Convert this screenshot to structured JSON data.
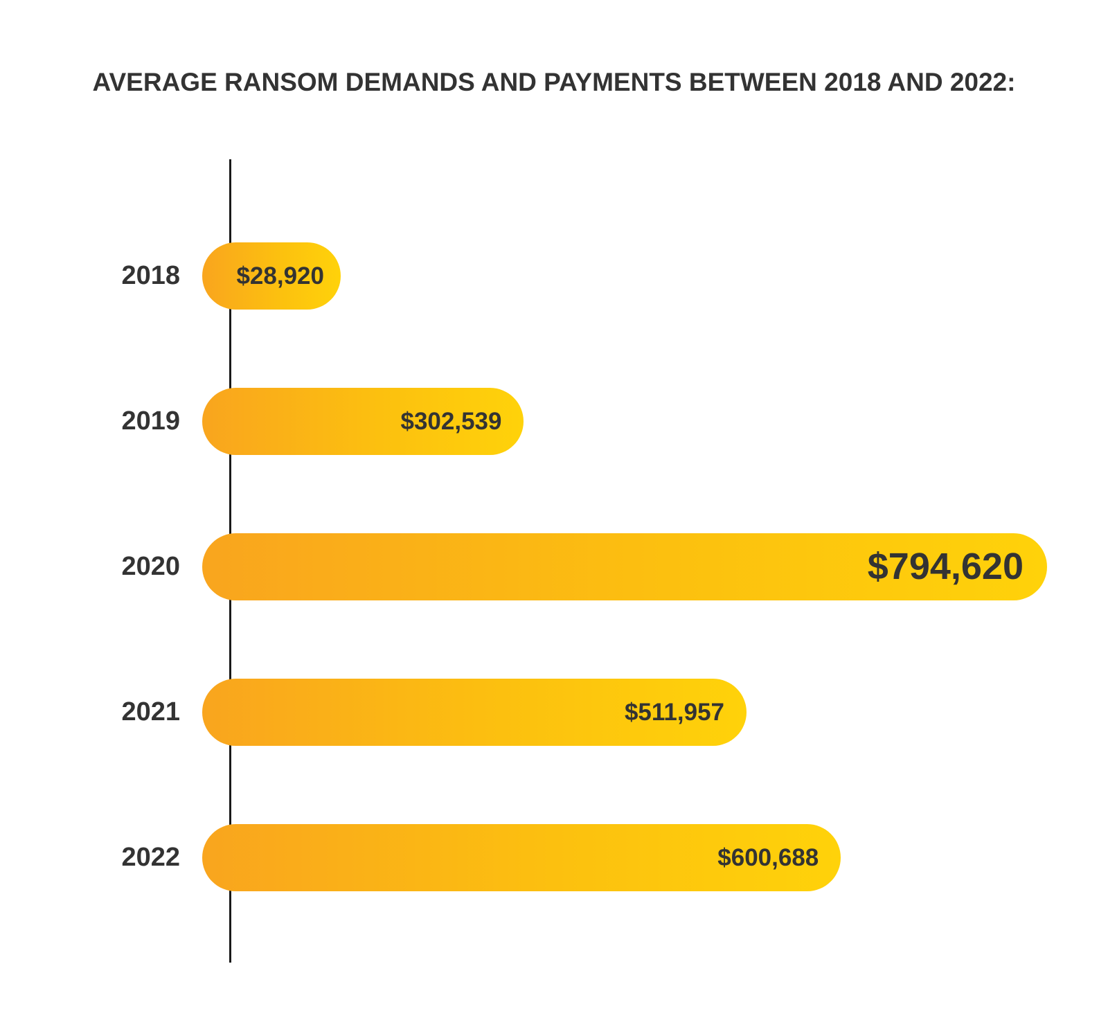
{
  "chart_data": {
    "type": "bar",
    "orientation": "horizontal",
    "title": "AVERAGE RANSOM DEMANDS AND PAYMENTS BETWEEN 2018 AND 2022:",
    "categories": [
      "2018",
      "2019",
      "2020",
      "2021",
      "2022"
    ],
    "values": [
      28920,
      302539,
      794620,
      511957,
      600688
    ],
    "value_labels": [
      "$28,920",
      "$302,539",
      "$794,620",
      "$511,957",
      "$600,688"
    ],
    "xlim": [
      0,
      794620
    ],
    "grid": false,
    "legend": "none",
    "colors": {
      "bar_start": "#f9a51e",
      "bar_end": "#ffd20a",
      "text": "#333333",
      "axis": "#1a1a1a"
    }
  }
}
